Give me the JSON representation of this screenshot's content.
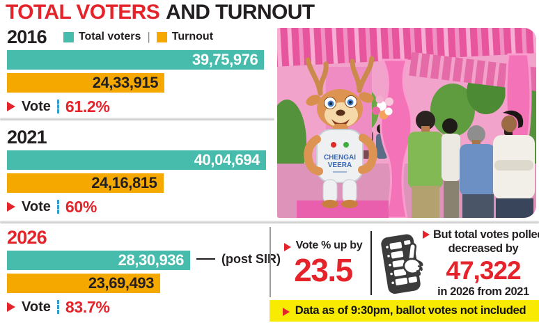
{
  "title": {
    "red": "TOTAL VOTERS",
    "black": "AND TURNOUT"
  },
  "legend": {
    "total_label": "Total voters",
    "separator": "|",
    "turnout_label": "Turnout"
  },
  "labels": {
    "vote": "Vote"
  },
  "colors": {
    "teal": "#47BCAC",
    "orange": "#F5A800",
    "red": "#E5232A",
    "dark": "#231F20",
    "yellow": "#F8EA00",
    "blue_dash": "#2E9FD0"
  },
  "chart_data": {
    "type": "bar",
    "orientation": "horizontal",
    "title": "TOTAL VOTERS AND TURNOUT",
    "series_names": [
      "Total voters",
      "Turnout"
    ],
    "max_value": 4004694,
    "groups": [
      {
        "year": "2016",
        "total_voters": 3975976,
        "total_label": "39,75,976",
        "turnout": 2433915,
        "turnout_label": "24,33,915",
        "vote_pct": "61.2%"
      },
      {
        "year": "2021",
        "total_voters": 4004694,
        "total_label": "40,04,694",
        "turnout": 2416815,
        "turnout_label": "24,16,815",
        "vote_pct": "60%"
      },
      {
        "year": "2026",
        "total_voters": 2830936,
        "total_label": "28,30,936",
        "annotation": "(post SIR)",
        "turnout": 2369493,
        "turnout_label": "23,69,493",
        "vote_pct": "83.7%"
      }
    ]
  },
  "callouts": {
    "vote_up": {
      "prefix": "Vote % up by",
      "value": "23.5"
    },
    "votes_down": {
      "line1": "But total votes polled",
      "line2": "decreased by",
      "value": "47,322",
      "line3": "in 2026 from 2021"
    },
    "footnote": "Data as of 9:30pm, ballot votes not included"
  },
  "photo": {
    "mascot_line1": "CHENGAI",
    "mascot_line2": "VEERA"
  }
}
